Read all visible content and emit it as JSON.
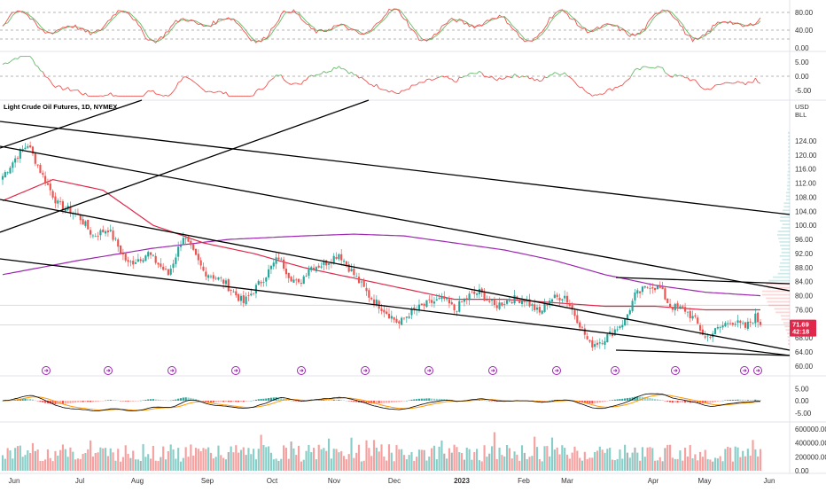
{
  "colors": {
    "up": "#26a69a",
    "down": "#ef5350",
    "ma_fast": "#e0284a",
    "ma_slow": "#9c27b0",
    "trendline": "#000000",
    "stoch_k": "#ef5350",
    "stoch_d": "#66bb6a",
    "macd_line": "#000000",
    "signal_line": "#ff9800",
    "badge": "#9c27b0",
    "price_badge": "#e0284a"
  },
  "chart_data": [
    {
      "type": "line",
      "panel": "stochastic",
      "y_range": [
        0,
        100
      ],
      "tick_labels": [
        "80.00",
        "40.00",
        "0.00"
      ],
      "dashed_levels": [
        80,
        40,
        20
      ],
      "series": [
        {
          "color_key": "stoch_k",
          "values_ref": "generated oscillation 0-100"
        }
      ]
    },
    {
      "type": "line",
      "panel": "momentum",
      "y_range": [
        -7.5,
        7.5
      ],
      "tick_labels": [
        "5.00",
        "0.00",
        "-5.00"
      ]
    },
    {
      "type": "candlestick",
      "panel": "price",
      "title": "Light Crude Oil Futures, 1D, NYMEX",
      "currency": "USD",
      "unit_label": "BLL",
      "y_range": [
        60,
        128
      ],
      "tick_labels": [
        "124.00",
        "120.00",
        "116.00",
        "112.00",
        "108.00",
        "104.00",
        "100.00",
        "96.00",
        "92.00",
        "88.00",
        "84.00",
        "80.00",
        "76.00",
        "72.00",
        "68.00",
        "64.00",
        "60.00"
      ],
      "last_price": "71.69",
      "countdown": "42:18",
      "x_labels": [
        "Jun",
        "Jul",
        "Aug",
        "Sep",
        "Oct",
        "Nov",
        "Dec",
        "2023",
        "Feb",
        "Mar",
        "Apr",
        "May",
        "Jun"
      ],
      "anchor_prices": [
        [
          0,
          114
        ],
        [
          6,
          120
        ],
        [
          10,
          123
        ],
        [
          16,
          114
        ],
        [
          22,
          106
        ],
        [
          30,
          103
        ],
        [
          36,
          97
        ],
        [
          42,
          99
        ],
        [
          50,
          89
        ],
        [
          58,
          92
        ],
        [
          66,
          86
        ],
        [
          72,
          97
        ],
        [
          80,
          87
        ],
        [
          88,
          84
        ],
        [
          96,
          78
        ],
        [
          104,
          85
        ],
        [
          110,
          91
        ],
        [
          114,
          86
        ],
        [
          118,
          83
        ],
        [
          122,
          88
        ],
        [
          128,
          89
        ],
        [
          134,
          92
        ],
        [
          140,
          86
        ],
        [
          146,
          80
        ],
        [
          152,
          76
        ],
        [
          158,
          72
        ],
        [
          162,
          75
        ],
        [
          170,
          78
        ],
        [
          176,
          79
        ],
        [
          180,
          76
        ],
        [
          186,
          80
        ],
        [
          190,
          81
        ],
        [
          196,
          77
        ],
        [
          202,
          79
        ],
        [
          208,
          79
        ],
        [
          214,
          75
        ],
        [
          218,
          79
        ],
        [
          224,
          80
        ],
        [
          230,
          72
        ],
        [
          234,
          66
        ],
        [
          238,
          67
        ],
        [
          242,
          69
        ],
        [
          248,
          73
        ],
        [
          252,
          80
        ],
        [
          258,
          83
        ],
        [
          262,
          82
        ],
        [
          266,
          77
        ],
        [
          272,
          76
        ],
        [
          276,
          73
        ],
        [
          280,
          68
        ],
        [
          284,
          70
        ],
        [
          290,
          73
        ],
        [
          296,
          71
        ],
        [
          300,
          74
        ],
        [
          302,
          71.69
        ]
      ],
      "ma_fast_anchors": [
        [
          0,
          107
        ],
        [
          20,
          113
        ],
        [
          40,
          110
        ],
        [
          60,
          100
        ],
        [
          80,
          95
        ],
        [
          100,
          92
        ],
        [
          120,
          88
        ],
        [
          140,
          85
        ],
        [
          160,
          82
        ],
        [
          180,
          79
        ],
        [
          200,
          79
        ],
        [
          220,
          78
        ],
        [
          240,
          77
        ],
        [
          260,
          77
        ],
        [
          280,
          76
        ],
        [
          302,
          76
        ]
      ],
      "ma_slow_anchors": [
        [
          0,
          86
        ],
        [
          30,
          90
        ],
        [
          60,
          93.5
        ],
        [
          90,
          96
        ],
        [
          120,
          97
        ],
        [
          140,
          97.5
        ],
        [
          160,
          97
        ],
        [
          180,
          95
        ],
        [
          200,
          93
        ],
        [
          220,
          90
        ],
        [
          240,
          86
        ],
        [
          260,
          83
        ],
        [
          280,
          81
        ],
        [
          302,
          80
        ]
      ]
    },
    {
      "type": "bar",
      "panel": "macd",
      "y_range": [
        -8,
        8
      ],
      "tick_labels": [
        "5.00",
        "0.00",
        "-5.00"
      ]
    },
    {
      "type": "bar",
      "panel": "volume",
      "y_range": [
        0,
        650000
      ],
      "tick_labels": [
        "600000.00",
        "400000.00",
        "200000.00",
        "0.00"
      ]
    }
  ]
}
